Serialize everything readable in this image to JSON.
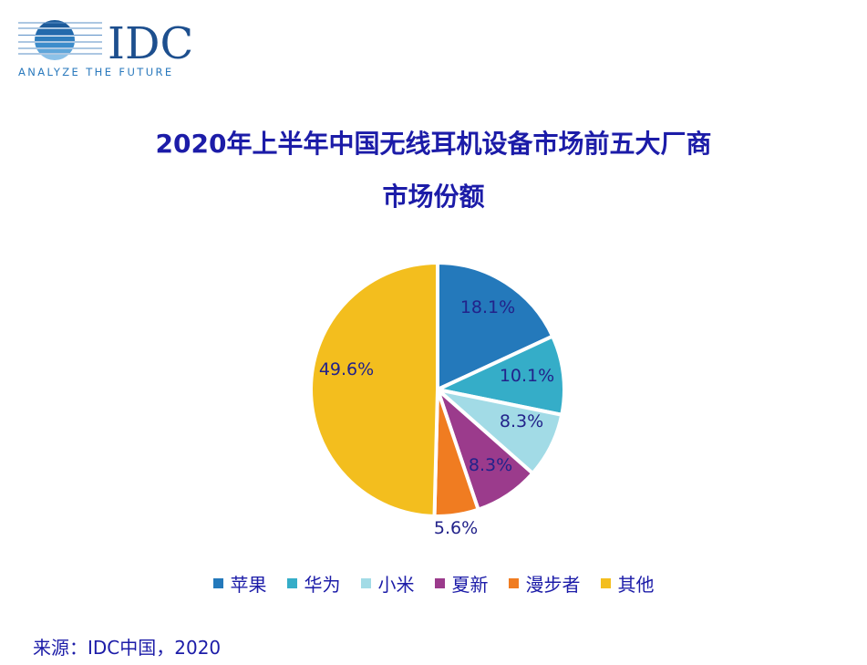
{
  "logo": {
    "text": "IDC",
    "tagline": "ANALYZE THE FUTURE"
  },
  "chart_data": {
    "type": "pie",
    "title": "2020年上半年中国无线耳机设备市场前五大厂商",
    "title_line2": "市场份额",
    "categories": [
      "苹果",
      "华为",
      "小米",
      "夏新",
      "漫步者",
      "其他"
    ],
    "values": [
      18.1,
      10.1,
      8.3,
      8.3,
      5.6,
      49.6
    ],
    "labels": [
      "18.1%",
      "10.1%",
      "8.3%",
      "8.3%",
      "5.6%",
      "49.6%"
    ],
    "colors": [
      "#2479BB",
      "#35ADC8",
      "#A2DBE6",
      "#9B3B8C",
      "#F07C21",
      "#F3BE1E"
    ],
    "legend_position": "bottom"
  },
  "source": "来源：IDC中国，2020"
}
